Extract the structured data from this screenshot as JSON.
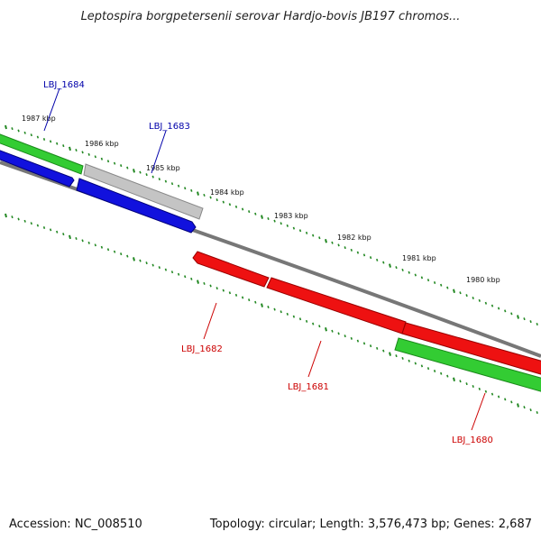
{
  "title": "Leptospira borgpetersenii serovar Hardjo-bovis JB197 chromos...",
  "footer": {
    "accession": "Accession: NC_008510",
    "stats": "Topology: circular; Length: 3,576,473 bp; Genes: 2,687"
  },
  "colors": {
    "forward_strand": "#0000ee",
    "reverse_strand": "#ee0000",
    "rna_or_other": "#33cc33",
    "pseudo": "#bbbbbb",
    "backbone": "#777777",
    "tick": "#228822"
  },
  "kbp_labels": [
    "1987 kbp",
    "1986 kbp",
    "1985 kbp",
    "1984 kbp",
    "1983 kbp",
    "1982 kbp",
    "1981 kbp",
    "1980 kbp"
  ],
  "gene_labels": {
    "top": [
      "LBJ_1684",
      "LBJ_1683"
    ],
    "bottom": [
      "LBJ_1682",
      "LBJ_1681",
      "LBJ_1680"
    ]
  }
}
